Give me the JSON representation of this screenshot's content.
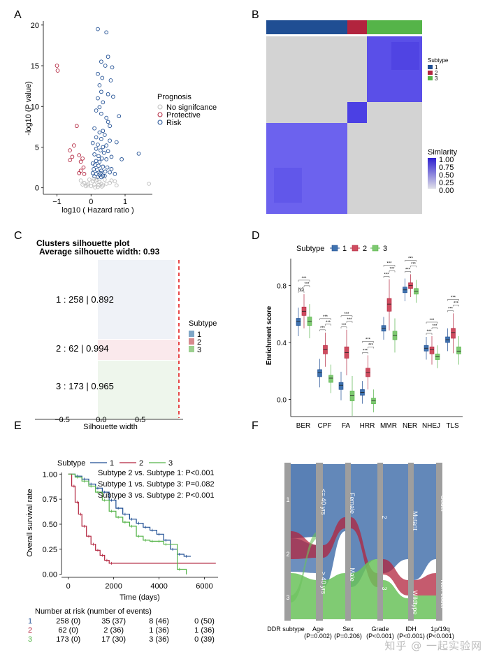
{
  "watermark": "知乎 @ 一起实验网",
  "panels": {
    "A": {
      "letter": "A"
    },
    "B": {
      "letter": "B"
    },
    "C": {
      "letter": "C"
    },
    "D": {
      "letter": "D"
    },
    "E": {
      "letter": "E"
    },
    "F": {
      "letter": "F"
    }
  },
  "colors": {
    "subtype1": "#1f4e93",
    "subtype2": "#b2243e",
    "subtype3": "#55b449",
    "grey": "#bdbdbd",
    "similarity_high": "#3a2fd6",
    "similarity_low": "#d3d3d3",
    "cutoff_line": "#e31a1c"
  },
  "chart_data": [
    {
      "id": "A",
      "type": "scatter",
      "xlabel": "log10 ( Hazard ratio )",
      "ylabel": "-log10 (P value)",
      "xticks": [
        "−1",
        "0",
        "1"
      ],
      "yticks": [
        "0",
        "5",
        "10",
        "15",
        "20"
      ],
      "xlim": [
        -1.4,
        1.8
      ],
      "ylim": [
        -0.8,
        20.5
      ],
      "legend_title": "Prognosis",
      "legend": [
        "No signifcance",
        "Protective",
        "Risk"
      ],
      "series": [
        {
          "name": "Risk",
          "points": [
            [
              0.2,
              19.5
            ],
            [
              0.45,
              19.1
            ],
            [
              0.5,
              16.1
            ],
            [
              0.42,
              15.0
            ],
            [
              0.62,
              14.8
            ],
            [
              0.2,
              14.0
            ],
            [
              0.33,
              13.5
            ],
            [
              0.25,
              12.6
            ],
            [
              0.3,
              11.8
            ],
            [
              0.5,
              11.5
            ],
            [
              0.2,
              11.0
            ],
            [
              0.35,
              10.5
            ],
            [
              0.25,
              9.9
            ],
            [
              0.15,
              9.5
            ],
            [
              0.3,
              9.1
            ],
            [
              0.45,
              8.6
            ],
            [
              0.5,
              8.1
            ],
            [
              0.55,
              7.6
            ],
            [
              0.1,
              7.3
            ],
            [
              0.35,
              7.0
            ],
            [
              0.25,
              6.8
            ],
            [
              0.4,
              6.5
            ],
            [
              0.15,
              6.2
            ],
            [
              0.3,
              6.0
            ],
            [
              0.55,
              5.8
            ],
            [
              0.05,
              5.5
            ],
            [
              0.2,
              5.3
            ],
            [
              0.45,
              5.2
            ],
            [
              0.35,
              5.0
            ],
            [
              0.15,
              4.8
            ],
            [
              0.28,
              4.6
            ],
            [
              0.5,
              4.5
            ],
            [
              0.38,
              4.3
            ],
            [
              0.1,
              4.1
            ],
            [
              0.22,
              3.9
            ],
            [
              0.6,
              3.8
            ],
            [
              0.32,
              3.6
            ],
            [
              0.45,
              3.5
            ],
            [
              0.15,
              3.3
            ],
            [
              0.25,
              3.2
            ],
            [
              1.4,
              4.2
            ],
            [
              0.9,
              3.5
            ],
            [
              0.05,
              3.0
            ],
            [
              0.12,
              2.8
            ],
            [
              0.22,
              2.7
            ],
            [
              0.35,
              2.6
            ],
            [
              0.48,
              2.5
            ],
            [
              0.08,
              2.3
            ],
            [
              0.18,
              2.2
            ],
            [
              0.3,
              2.1
            ],
            [
              0.42,
              2.0
            ],
            [
              0.55,
              1.9
            ],
            [
              0.05,
              1.8
            ],
            [
              0.15,
              1.7
            ],
            [
              0.25,
              1.6
            ],
            [
              0.35,
              1.5
            ],
            [
              0.1,
              1.4
            ],
            [
              0.2,
              1.35
            ],
            [
              0.3,
              1.3
            ],
            [
              0.4,
              1.45
            ],
            [
              0.28,
              1.8
            ],
            [
              0.6,
              2.3
            ],
            [
              0.7,
              1.7
            ],
            [
              0.75,
              5.6
            ],
            [
              0.82,
              8.8
            ],
            [
              0.65,
              11.2
            ],
            [
              0.58,
              13.2
            ],
            [
              0.3,
              15.5
            ]
          ]
        },
        {
          "name": "Protective",
          "points": [
            [
              -1.0,
              15.0
            ],
            [
              -0.98,
              14.4
            ],
            [
              -0.42,
              7.6
            ],
            [
              -0.5,
              5.2
            ],
            [
              -0.62,
              4.6
            ],
            [
              -0.35,
              4.0
            ],
            [
              -0.55,
              3.8
            ],
            [
              -0.25,
              3.6
            ],
            [
              -0.3,
              3.2
            ],
            [
              -0.62,
              3.4
            ],
            [
              -0.22,
              2.5
            ],
            [
              -0.3,
              2.1
            ],
            [
              -0.35,
              1.8
            ],
            [
              -0.2,
              1.7
            ]
          ]
        },
        {
          "name": "No signifcance",
          "points": [
            [
              -0.1,
              0.3
            ],
            [
              0.0,
              0.2
            ],
            [
              0.1,
              0.4
            ],
            [
              0.2,
              0.1
            ],
            [
              0.3,
              0.5
            ],
            [
              -0.2,
              0.6
            ],
            [
              0.05,
              0.8
            ],
            [
              0.15,
              0.9
            ],
            [
              -0.05,
              1.0
            ],
            [
              0.25,
              0.7
            ],
            [
              0.35,
              0.3
            ],
            [
              -0.15,
              0.2
            ],
            [
              0.45,
              0.5
            ],
            [
              0.55,
              0.6
            ],
            [
              0.6,
              0.9
            ],
            [
              -0.25,
              0.4
            ],
            [
              0.08,
              1.1
            ],
            [
              0.18,
              1.0
            ],
            [
              -0.08,
              0.5
            ],
            [
              0.4,
              1.0
            ],
            [
              1.7,
              0.5
            ],
            [
              0.75,
              0.3
            ],
            [
              0.7,
              0.8
            ],
            [
              -0.3,
              0.9
            ],
            [
              0.12,
              0.05
            ],
            [
              0.22,
              0.35
            ],
            [
              0.32,
              0.15
            ]
          ]
        }
      ]
    },
    {
      "id": "B",
      "type": "heatmap",
      "annotation_title": "Subtype",
      "subtype_labels": [
        "1",
        "2",
        "3"
      ],
      "cluster_sizes": [
        258,
        62,
        173
      ],
      "top_bar_order": [
        "1",
        "2",
        "3"
      ],
      "matrix_order": [
        "3",
        "2",
        "1"
      ],
      "colorbar_title": "Simlarity",
      "colorbar_ticks": [
        "1.00",
        "0.75",
        "0.50",
        "0.25",
        "0.00"
      ]
    },
    {
      "id": "C",
      "type": "bar",
      "title": "Clusters silhouette plot",
      "subtitle": "Average silhouette width: 0.93",
      "average": 0.93,
      "xlabel": "Silhouette width",
      "xticks": [
        "−0.5",
        "0.0",
        "0.5"
      ],
      "xlim": [
        -0.85,
        1.05
      ],
      "legend_title": "Subtype",
      "legend": [
        "1",
        "2",
        "3"
      ],
      "clusters": [
        {
          "subtype": "1",
          "n": 258,
          "avg": 0.892,
          "label": "1 :  258  |  0.892"
        },
        {
          "subtype": "2",
          "n": 62,
          "avg": 0.994,
          "label": "2 :  62  |  0.994"
        },
        {
          "subtype": "3",
          "n": 173,
          "avg": 0.965,
          "label": "3 :  173  |  0.965"
        }
      ]
    },
    {
      "id": "D",
      "type": "box",
      "ylabel": "Enrichment score",
      "legend_title": "Subtype",
      "legend": [
        "1",
        "2",
        "3"
      ],
      "categories": [
        "BER",
        "CPF",
        "FA",
        "HRR",
        "MMR",
        "NER",
        "NHEJ",
        "TLS"
      ],
      "yticks": [
        "0.0",
        "0.4",
        "0.8"
      ],
      "ylim": [
        -0.12,
        0.98
      ],
      "series": [
        {
          "name": "1",
          "medians": [
            0.55,
            0.19,
            0.1,
            0.05,
            0.5,
            0.77,
            0.36,
            0.42
          ],
          "q1": [
            0.52,
            0.16,
            0.07,
            0.03,
            0.48,
            0.75,
            0.34,
            0.4
          ],
          "q3": [
            0.57,
            0.21,
            0.12,
            0.07,
            0.52,
            0.79,
            0.38,
            0.44
          ]
        },
        {
          "name": "2",
          "medians": [
            0.62,
            0.35,
            0.33,
            0.19,
            0.67,
            0.8,
            0.35,
            0.47
          ],
          "q1": [
            0.59,
            0.32,
            0.29,
            0.16,
            0.62,
            0.78,
            0.32,
            0.43
          ],
          "q3": [
            0.65,
            0.38,
            0.37,
            0.22,
            0.71,
            0.82,
            0.37,
            0.5
          ]
        },
        {
          "name": "3",
          "medians": [
            0.55,
            0.15,
            0.03,
            -0.01,
            0.45,
            0.76,
            0.3,
            0.34
          ],
          "q1": [
            0.52,
            0.12,
            -0.01,
            -0.03,
            0.42,
            0.74,
            0.28,
            0.32
          ],
          "q3": [
            0.58,
            0.17,
            0.06,
            0.01,
            0.48,
            0.78,
            0.32,
            0.37
          ]
        }
      ],
      "significance": [
        [
          "NS",
          "***",
          "***"
        ],
        [
          "***",
          "***",
          "***"
        ],
        [
          "***",
          "***",
          "***"
        ],
        [
          "***",
          "***",
          "***"
        ],
        [
          "***",
          "***",
          "***"
        ],
        [
          "***",
          "***",
          "***"
        ],
        [
          "***",
          "***",
          "***"
        ],
        [
          "***",
          "***",
          "***"
        ]
      ]
    },
    {
      "id": "E",
      "type": "line",
      "legend_title": "Subtype",
      "legend": [
        "1",
        "2",
        "3"
      ],
      "xlabel": "Time (days)",
      "ylabel": "Overall survival rate",
      "xticks": [
        "0",
        "2000",
        "4000",
        "6000"
      ],
      "yticks": [
        "0.00",
        "0.25",
        "0.50",
        "0.75",
        "1.00"
      ],
      "xlim": [
        -300,
        6600
      ],
      "ylim": [
        -0.03,
        1.03
      ],
      "annotations": [
        "Subtype 2 vs. Subtype 1: P<0.001",
        "Subtype 1 vs. Subtype 3: P=0.082",
        "Subtype 3 vs. Subtype 2: P<0.001"
      ],
      "series": [
        {
          "name": "1",
          "x": [
            0,
            300,
            600,
            900,
            1200,
            1500,
            1800,
            2100,
            2400,
            2700,
            3000,
            3300,
            3600,
            3900,
            4200,
            4500,
            4800,
            5100,
            5400
          ],
          "y": [
            1.0,
            0.98,
            0.95,
            0.9,
            0.86,
            0.82,
            0.74,
            0.66,
            0.6,
            0.55,
            0.51,
            0.47,
            0.44,
            0.4,
            0.34,
            0.25,
            0.2,
            0.18,
            0.18
          ]
        },
        {
          "name": "2",
          "x": [
            0,
            150,
            300,
            450,
            600,
            800,
            1000,
            1200,
            1400,
            1600,
            1800,
            6500
          ],
          "y": [
            1.0,
            0.88,
            0.72,
            0.6,
            0.48,
            0.38,
            0.3,
            0.24,
            0.19,
            0.14,
            0.11,
            0.11
          ]
        },
        {
          "name": "3",
          "x": [
            0,
            300,
            600,
            900,
            1200,
            1500,
            1800,
            2100,
            2400,
            2700,
            3000,
            3300,
            3600,
            3900,
            4200,
            4800,
            5200
          ],
          "y": [
            1.0,
            0.97,
            0.93,
            0.88,
            0.82,
            0.74,
            0.63,
            0.57,
            0.52,
            0.48,
            0.38,
            0.34,
            0.33,
            0.33,
            0.3,
            0.05,
            0.0
          ]
        }
      ],
      "risk_table": {
        "title": "Number at risk (number of events)",
        "rows": [
          {
            "label": "1",
            "values": [
              "258 (0)",
              "35 (37)",
              "8 (46)",
              "0 (50)"
            ]
          },
          {
            "label": "2",
            "values": [
              "62 (0)",
              "2 (36)",
              "1 (36)",
              "1 (36)"
            ]
          },
          {
            "label": "3",
            "values": [
              "173 (0)",
              "17 (30)",
              "3 (36)",
              "0 (39)"
            ]
          }
        ]
      }
    },
    {
      "id": "F",
      "type": "sankey",
      "axes": [
        {
          "label": "DDR subtype",
          "p": ""
        },
        {
          "label": "Age",
          "p": "(P=0.002)"
        },
        {
          "label": "Sex",
          "p": "(P=0.206)"
        },
        {
          "label": "Grade",
          "p": "(P<0.001)"
        },
        {
          "label": "IDH",
          "p": "(P<0.001)"
        },
        {
          "label": "1p/19q",
          "p": "(P<0.001)"
        }
      ],
      "nodes": [
        [
          "1",
          "2",
          "3"
        ],
        [
          "<= 40 yrs",
          "> 40 yrs"
        ],
        [
          "Female",
          "Male"
        ],
        [
          "2",
          "3"
        ],
        [
          "Mutant",
          "Wildtype"
        ],
        [
          "Codel",
          "Non-codel"
        ]
      ]
    }
  ]
}
